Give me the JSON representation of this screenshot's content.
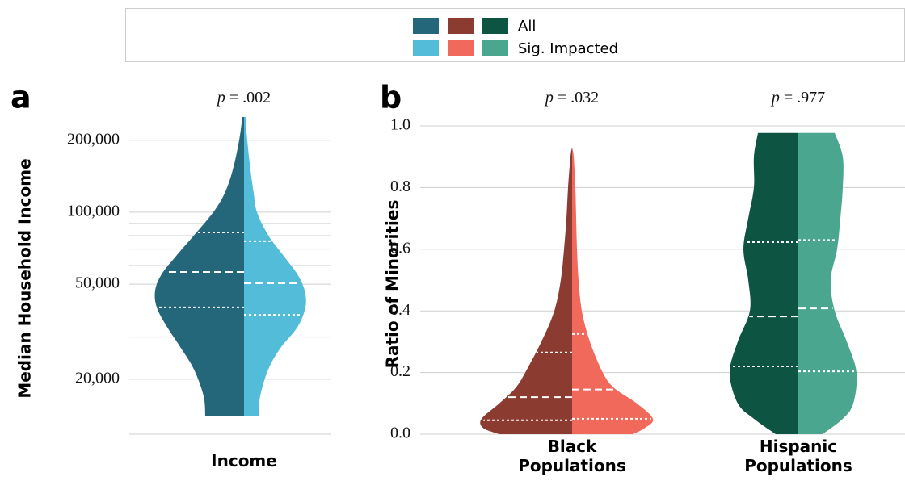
{
  "legend": [
    {
      "name": "All",
      "colors": [
        "#24667a",
        "#8c3b30",
        "#0e5442"
      ]
    },
    {
      "name": "Sig. Impacted",
      "colors": [
        "#52bcd9",
        "#f0695a",
        "#4aa68f"
      ]
    }
  ],
  "chart_data": [
    {
      "type": "violin",
      "panel_label": "a",
      "title": "p = .002",
      "ylabel": "Median Household Income",
      "categories": [
        "Income"
      ],
      "log_scale": true,
      "grid": true,
      "ylim": [
        11600,
        260000
      ],
      "yticks": [
        {
          "value": 20000,
          "label": "20,000"
        },
        {
          "value": 50000,
          "label": "50,000"
        },
        {
          "value": 100000,
          "label": "100,000"
        },
        {
          "value": 200000,
          "label": "200,000"
        }
      ],
      "minor_yticks": [
        30000,
        60000,
        70000,
        80000,
        90000
      ],
      "series": [
        {
          "colors": [
            "#24667a"
          ],
          "violins": [
            {
              "density_y": [
                250000,
                200000,
                150000,
                120000,
                100000,
                80000,
                65000,
                55000,
                47000,
                40000,
                33000,
                27000,
                22000,
                17000,
                14000
              ],
              "density": [
                0.02,
                0.06,
                0.14,
                0.24,
                0.38,
                0.62,
                0.85,
                1.02,
                1.1,
                1.08,
                0.95,
                0.78,
                0.62,
                0.5,
                0.48
              ],
              "q1": 39950,
              "median": 56200,
              "q3": 82300
            }
          ]
        },
        {
          "colors": [
            "#52bcd9"
          ],
          "violins": [
            {
              "density_y": [
                250000,
                200000,
                150000,
                120000,
                100000,
                80000,
                65000,
                55000,
                47000,
                40000,
                33000,
                27000,
                22000,
                17000,
                14000
              ],
              "density": [
                0.02,
                0.04,
                0.08,
                0.12,
                0.16,
                0.3,
                0.5,
                0.66,
                0.75,
                0.76,
                0.66,
                0.45,
                0.3,
                0.2,
                0.18
              ],
              "q1": 37200,
              "median": 50400,
              "q3": 75600
            }
          ]
        }
      ]
    },
    {
      "type": "violin",
      "panel_label": "b",
      "titles": [
        "p = .032",
        "p = .977"
      ],
      "ylabel": "Ratio of Minorities",
      "categories": [
        "Black Populations",
        "Hispanic Populations"
      ],
      "log_scale": false,
      "grid": true,
      "ylim": [
        0,
        1
      ],
      "yticks": [
        {
          "value": 0,
          "label": "0.0"
        },
        {
          "value": 0.2,
          "label": "0.2"
        },
        {
          "value": 0.4,
          "label": "0.4"
        },
        {
          "value": 0.6,
          "label": "0.6"
        },
        {
          "value": 0.8,
          "label": "0.8"
        },
        {
          "value": 1,
          "label": "1.0"
        }
      ],
      "series": [
        {
          "colors": [
            "#8c3b30",
            "#0e5442"
          ],
          "violins": [
            {
              "density_y": [
                0,
                0.02,
                0.05,
                0.1,
                0.15,
                0.2,
                0.3,
                0.4,
                0.5,
                0.6,
                0.7,
                0.8,
                0.9,
                0.93
              ],
              "density": [
                0.9,
                1.1,
                1.12,
                0.9,
                0.7,
                0.58,
                0.38,
                0.22,
                0.14,
                0.1,
                0.07,
                0.05,
                0.02,
                0
              ],
              "q1": 0.045,
              "median": 0.12,
              "q3": 0.265
            },
            {
              "density_y": [
                0,
                0.05,
                0.1,
                0.2,
                0.3,
                0.4,
                0.5,
                0.6,
                0.7,
                0.8,
                0.9,
                0.977
              ],
              "density": [
                0.28,
                0.55,
                0.75,
                0.85,
                0.75,
                0.6,
                0.62,
                0.68,
                0.62,
                0.55,
                0.55,
                0.5
              ],
              "q1": 0.22,
              "median": 0.382,
              "q3": 0.623
            }
          ]
        },
        {
          "colors": [
            "#f0695a",
            "#4aa68f"
          ],
          "violins": [
            {
              "density_y": [
                0,
                0.02,
                0.05,
                0.1,
                0.15,
                0.2,
                0.3,
                0.4,
                0.5,
                0.6,
                0.7,
                0.8,
                0.9,
                0.93
              ],
              "density": [
                0.75,
                0.9,
                1.0,
                0.8,
                0.52,
                0.38,
                0.22,
                0.12,
                0.08,
                0.06,
                0.05,
                0.04,
                0.02,
                0
              ],
              "q1": 0.05,
              "median": 0.145,
              "q3": 0.325
            },
            {
              "density_y": [
                0,
                0.05,
                0.1,
                0.2,
                0.3,
                0.4,
                0.5,
                0.6,
                0.7,
                0.8,
                0.9,
                0.977
              ],
              "density": [
                0.3,
                0.55,
                0.68,
                0.72,
                0.6,
                0.45,
                0.4,
                0.48,
                0.52,
                0.55,
                0.55,
                0.45
              ],
              "q1": 0.204,
              "median": 0.408,
              "q3": 0.63
            }
          ]
        }
      ]
    }
  ]
}
